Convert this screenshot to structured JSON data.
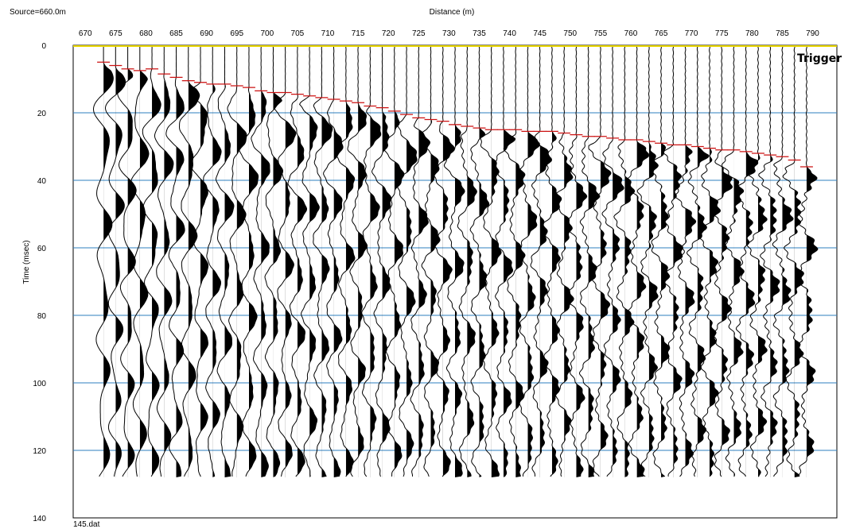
{
  "chart_data": {
    "type": "seismic-wiggle",
    "title": "Distance (m)",
    "source_label": "Source=660.0m",
    "file_label": "145.dat",
    "xlabel": "Distance (m)",
    "ylabel": "Time (msec)",
    "trigger_label": "Trigger",
    "x_ticks": [
      670,
      675,
      680,
      685,
      690,
      695,
      700,
      705,
      710,
      715,
      720,
      725,
      730,
      735,
      740,
      745,
      750,
      755,
      760,
      765,
      770,
      775,
      780,
      785,
      790
    ],
    "y_ticks": [
      0,
      20,
      40,
      60,
      80,
      100,
      120,
      140
    ],
    "xlim": [
      668,
      794
    ],
    "ylim": [
      0,
      140
    ],
    "record_end_ms": 128,
    "trace_x": [
      673,
      675,
      677,
      679,
      681,
      683,
      685,
      687,
      689,
      691,
      693,
      695,
      697,
      699,
      701,
      703,
      705,
      707,
      709,
      711,
      713,
      715,
      717,
      719,
      721,
      723,
      725,
      727,
      729,
      731,
      733,
      735,
      737,
      739,
      741,
      743,
      745,
      747,
      749,
      751,
      753,
      755,
      757,
      759,
      761,
      763,
      765,
      767,
      769,
      771,
      773,
      775,
      777,
      779,
      781,
      783,
      785,
      787,
      789
    ],
    "first_breaks": {
      "x": [
        673,
        675,
        677,
        679,
        681,
        683,
        685,
        687,
        689,
        691,
        693,
        695,
        697,
        699,
        701,
        703,
        705,
        707,
        709,
        711,
        713,
        715,
        717,
        719,
        721,
        723,
        725,
        727,
        729,
        731,
        733,
        735,
        737,
        739,
        741,
        743,
        745,
        747,
        749,
        751,
        753,
        755,
        757,
        759,
        761,
        763,
        765,
        767,
        769,
        771,
        773,
        775,
        777,
        779,
        781,
        783,
        785,
        787,
        789
      ],
      "t": [
        5,
        6,
        7,
        7.5,
        7,
        8.5,
        9.5,
        10.5,
        11,
        11.5,
        11.5,
        12,
        12.5,
        13.5,
        14,
        14,
        14.5,
        15,
        15.5,
        16,
        16.5,
        17,
        18,
        18.5,
        19.5,
        20.5,
        21.5,
        22,
        22.5,
        23.5,
        24,
        24.5,
        25,
        25,
        25,
        25.5,
        25.5,
        25.5,
        26,
        26.5,
        27,
        27,
        27.5,
        28,
        28,
        28.5,
        29,
        29.5,
        29.5,
        30,
        30.5,
        31,
        31,
        31.5,
        32,
        32.5,
        33,
        34,
        36
      ]
    },
    "grid": true,
    "colors": {
      "gridline": "#2e7fbf",
      "trigger_line": "#e8d600",
      "first_break_pick": "#cc1111",
      "trace": "#000000"
    }
  }
}
